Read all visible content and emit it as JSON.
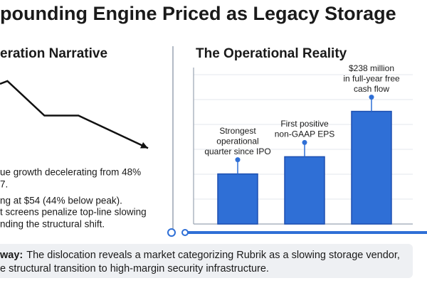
{
  "header": {
    "title": "pounding Engine Priced as Legacy Storage"
  },
  "left_panel": {
    "heading": "eration Narrative",
    "lines": [
      "ue growth decelerating from 48%",
      "7.",
      "ng at $54 (44% below peak).",
      "t screens penalize top-line slowing",
      "nding the structural shift."
    ]
  },
  "right_panel": {
    "heading": "The Operational Reality"
  },
  "chart_data": [
    {
      "type": "line",
      "x": [
        0,
        5,
        30,
        53,
        100
      ],
      "values": [
        83,
        86,
        50,
        50,
        16
      ],
      "xlim": [
        0,
        100
      ],
      "ylim": [
        0,
        100
      ],
      "color": "#111111"
    },
    {
      "type": "bar",
      "categories": [
        null,
        null,
        null
      ],
      "values": [
        32,
        43,
        72
      ],
      "ylim": [
        0,
        100
      ],
      "color": "#2f6fd6",
      "annotations": [
        [
          "Strongest",
          "operational",
          "quarter since IPO"
        ],
        [
          "First positive",
          "non-GAAP EPS"
        ],
        [
          "$238 million",
          "in full-year free",
          "cash flow"
        ]
      ]
    }
  ],
  "takeaway": {
    "label": "way:",
    "lines": [
      "The dislocation reveals a market categorizing Rubrik as a slowing storage vendor,",
      "e structural transition to high-margin security infrastructure."
    ]
  }
}
